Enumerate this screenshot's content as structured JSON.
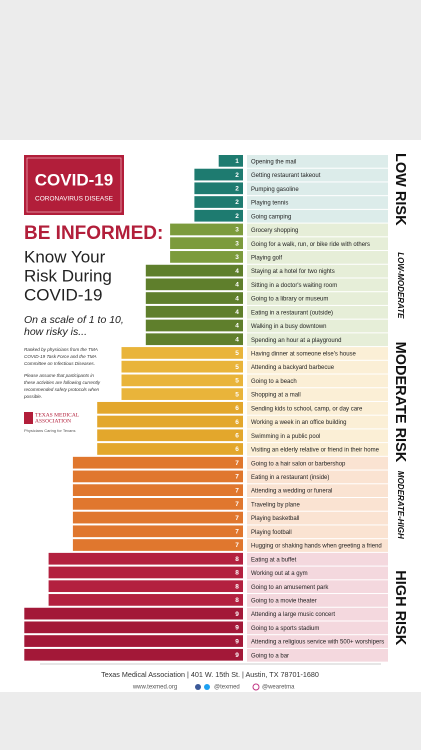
{
  "chart_data": {
    "type": "bar",
    "badge_title": "COVID-19",
    "badge_subtitle": "CORONAVIRUS DISEASE",
    "headline": "BE INFORMED:",
    "title_lines": [
      "Know Your",
      "Risk During",
      "COVID-19"
    ],
    "question_lines": [
      "On a scale of 1 to 10,",
      "how risky is..."
    ],
    "note_lines": [
      "Ranked by physicians from the TMA",
      "COVID-19 Task Force and the TMA",
      "Committee on Infectious Diseases.",
      "Please assume that participants in",
      "these activities are following currently",
      "recommended safety protocols when",
      "possible."
    ],
    "logo_lines": [
      "TEXAS MEDICAL",
      "ASSOCIATION"
    ],
    "logo_tagline": "Physicians Caring for Texans",
    "bar_colors": [
      "#1e7b70",
      "#1e7b70",
      "#7c9b3c",
      "#5f7f2c",
      "#e9b43a",
      "#e3a72c",
      "#e0772e",
      "#b3203f",
      "#a31838"
    ],
    "groups": [
      {
        "name": "LOW RISK",
        "band_color": "#dcecea",
        "categories": [
          "Opening the mail",
          "Getting restaurant takeout",
          "Pumping gasoline",
          "Playing tennis",
          "Going camping"
        ],
        "values": [
          1,
          2,
          2,
          2,
          2
        ]
      },
      {
        "name": "LOW-MODERATE",
        "band_color": "#e6eed8",
        "categories": [
          "Grocery shopping",
          "Going for a walk, run, or bike ride with others",
          "Playing golf",
          "Staying at a hotel for two nights",
          "Sitting in a doctor's waiting room",
          "Going to a library or museum",
          "Eating in a restaurant (outside)",
          "Walking in a busy downtown",
          "Spending an hour at a playground"
        ],
        "values": [
          3,
          3,
          3,
          4,
          4,
          4,
          4,
          4,
          4
        ]
      },
      {
        "name": "MODERATE RISK",
        "band_color": "#fbefd6",
        "categories": [
          "Having dinner at someone else's house",
          "Attending a backyard barbecue",
          "Going to a beach",
          "Shopping at a mall",
          "Sending kids to school, camp, or day care",
          "Working a week in an office building",
          "Swimming in a public pool",
          "Visiting an elderly relative or friend in their home"
        ],
        "values": [
          5,
          5,
          5,
          5,
          6,
          6,
          6,
          6
        ]
      },
      {
        "name": "MODERATE-HIGH",
        "band_color": "#fae3d2",
        "categories": [
          "Going to a hair salon or barbershop",
          "Eating in a restaurant (inside)",
          "Attending a wedding or funeral",
          "Traveling by plane",
          "Playing basketball",
          "Playing football",
          "Hugging or shaking hands when greeting a friend"
        ],
        "values": [
          7,
          7,
          7,
          7,
          7,
          7,
          7
        ]
      },
      {
        "name": "HIGH RISK",
        "band_color": "#f4d8de",
        "categories": [
          "Eating at a buffet",
          "Working out at a gym",
          "Going to an amusement park",
          "Going to a movie theater",
          "Attending a large music concert",
          "Going to a sports stadium",
          "Attending a religious service with 500+ worshipers",
          "Going to a bar"
        ],
        "values": [
          8,
          8,
          8,
          8,
          9,
          9,
          9,
          9
        ]
      }
    ],
    "footer_line": "Texas Medical Association  |  401 W. 15th St.  |  Austin, TX 78701-1680",
    "footer_links": [
      "www.texmed.org",
      "@texmed",
      "@wearetma"
    ]
  }
}
